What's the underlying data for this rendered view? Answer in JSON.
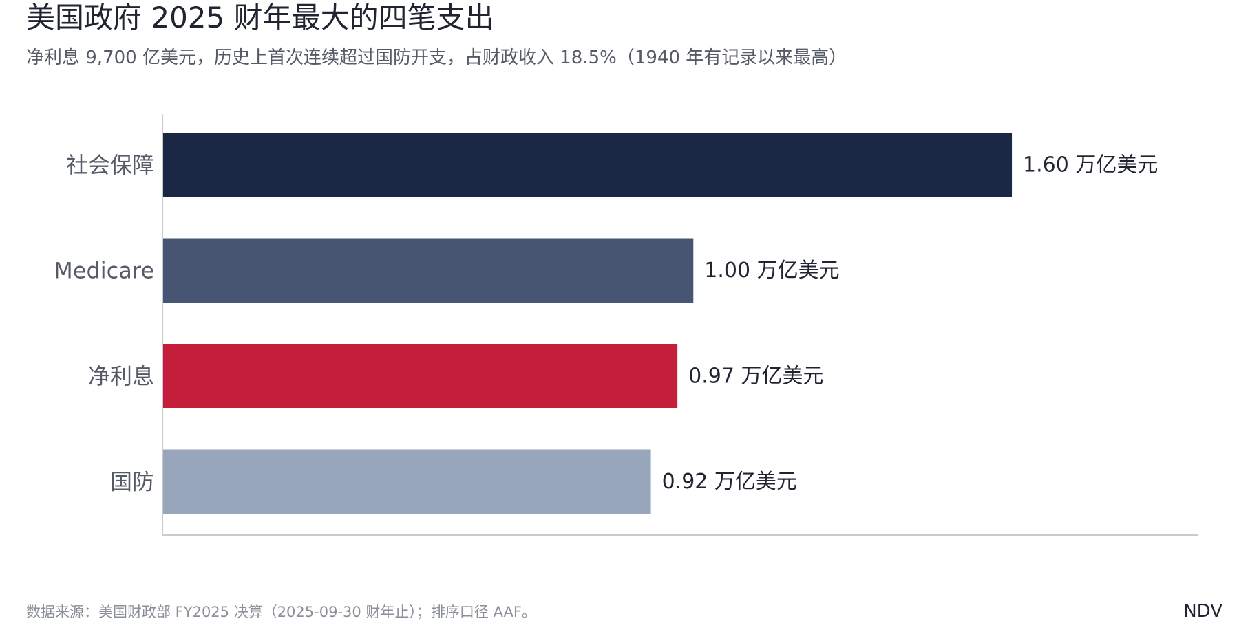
{
  "header": {
    "title": "美国政府 2025 财年最大的四笔支出",
    "subtitle": "净利息 9,700 亿美元，历史上首次连续超过国防开支，占财政收入 18.5%（1940 年有记录以来最高）"
  },
  "footer": {
    "source": "数据来源：美国财政部 FY2025 决算（2025-09-30 财年止）；排序口径 AAF。",
    "brand": "NDV"
  },
  "chart_data": {
    "type": "bar",
    "orientation": "horizontal",
    "categories": [
      "社会保障",
      "Medicare",
      "净利息",
      "国防"
    ],
    "values": [
      1.6,
      1.0,
      0.97,
      0.92
    ],
    "value_labels": [
      "1.60 万亿美元",
      "1.00 万亿美元",
      "0.97 万亿美元",
      "0.92 万亿美元"
    ],
    "unit": "万亿美元",
    "colors": [
      "#1b2845",
      "#475573",
      "#c41e3a",
      "#98a6bb"
    ],
    "xlim": [
      0,
      1.95
    ],
    "grid": false,
    "legend": "none"
  }
}
